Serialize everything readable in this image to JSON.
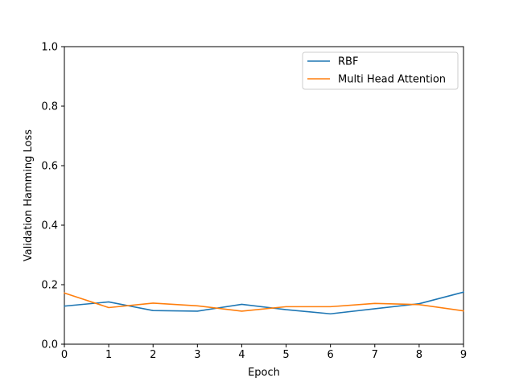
{
  "chart_data": {
    "type": "line",
    "xlabel": "Epoch",
    "ylabel": "Validation Hamming Loss",
    "xlim": [
      0,
      9
    ],
    "ylim": [
      0.0,
      1.0
    ],
    "x_ticks": [
      "0",
      "1",
      "2",
      "3",
      "4",
      "5",
      "6",
      "7",
      "8",
      "9"
    ],
    "y_ticks": [
      "0.0",
      "0.2",
      "0.4",
      "0.6",
      "0.8",
      "1.0"
    ],
    "grid": false,
    "legend_position": "top-right",
    "x": [
      0,
      1,
      2,
      3,
      4,
      5,
      6,
      7,
      8,
      9
    ],
    "series": [
      {
        "name": "RBF",
        "color": "#1f77b4",
        "values": [
          0.128,
          0.142,
          0.113,
          0.111,
          0.134,
          0.116,
          0.102,
          0.119,
          0.136,
          0.175
        ]
      },
      {
        "name": "Multi Head Attention",
        "color": "#ff7f0e",
        "values": [
          0.172,
          0.123,
          0.138,
          0.129,
          0.111,
          0.126,
          0.126,
          0.137,
          0.133,
          0.112
        ]
      }
    ]
  }
}
